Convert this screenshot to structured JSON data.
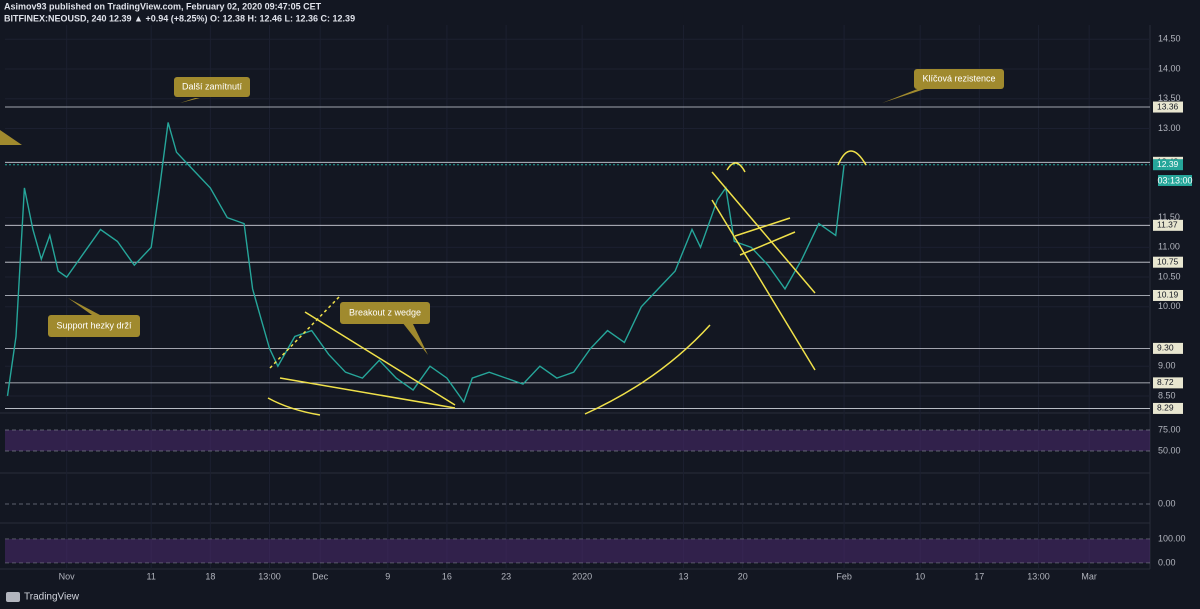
{
  "header": {
    "publisher": "Asimov93 published on TradingView.com, February 02, 2020 09:47:05 CET",
    "symbol": "BITFINEX:NEOUSD, 240  12.39  ▲ +0.94 (+8.25%) O: 12.38 H: 12.46 L: 12.36 C: 12.39"
  },
  "footer": {
    "brand": "TradingView"
  },
  "chart_data": {
    "type": "line",
    "color": "#26a69a",
    "grid": true,
    "x": [
      -7,
      -6,
      -5,
      -4,
      -3,
      -2,
      -1,
      0,
      2,
      4,
      6,
      8,
      10,
      11,
      12,
      13,
      15,
      17,
      19,
      21,
      22,
      23,
      24,
      25,
      27,
      29,
      31,
      33,
      35,
      37,
      39,
      41,
      43,
      45,
      47,
      48,
      50,
      52,
      54,
      56,
      58,
      60,
      62,
      64,
      66,
      68,
      70,
      72,
      74,
      75,
      77,
      78,
      79,
      81,
      83,
      85,
      87,
      89,
      91,
      92
    ],
    "values": [
      8.5,
      9.5,
      12.0,
      11.3,
      10.8,
      11.2,
      10.6,
      10.5,
      10.9,
      11.3,
      11.1,
      10.7,
      11.0,
      12.0,
      13.1,
      12.6,
      12.3,
      12.0,
      11.5,
      11.4,
      10.3,
      9.8,
      9.3,
      9.0,
      9.5,
      9.6,
      9.2,
      8.9,
      8.8,
      9.1,
      8.8,
      8.6,
      9.0,
      8.8,
      8.4,
      8.8,
      8.9,
      8.8,
      8.7,
      9.0,
      8.8,
      8.9,
      9.3,
      9.6,
      9.4,
      10.0,
      10.3,
      10.6,
      11.3,
      11.0,
      11.8,
      12.0,
      11.1,
      11.0,
      10.7,
      10.3,
      10.8,
      11.4,
      11.2,
      12.39
    ],
    "xlim": [
      -7.3,
      128.2
    ],
    "xticks": [
      {
        "value": 0,
        "label": "Nov"
      },
      {
        "value": 10,
        "label": "11"
      },
      {
        "value": 17,
        "label": "18"
      },
      {
        "value": 24,
        "label": "13:00"
      },
      {
        "value": 30,
        "label": "Dec"
      },
      {
        "value": 38,
        "label": "9"
      },
      {
        "value": 45,
        "label": "16"
      },
      {
        "value": 52,
        "label": "23"
      },
      {
        "value": 61,
        "label": "2020"
      },
      {
        "value": 73,
        "label": "13"
      },
      {
        "value": 80,
        "label": "20"
      },
      {
        "value": 92,
        "label": "Feb"
      },
      {
        "value": 101,
        "label": "10"
      },
      {
        "value": 108,
        "label": "17"
      },
      {
        "value": 115,
        "label": "13:00"
      },
      {
        "value": 121,
        "label": "Mar"
      }
    ],
    "ylim": [
      8.23,
      14.74
    ],
    "yticks": [
      {
        "value": 14.5,
        "label": "14.50"
      },
      {
        "value": 14,
        "label": "14.00"
      },
      {
        "value": 13.5,
        "label": "13.50"
      },
      {
        "value": 13,
        "label": "13.00"
      },
      {
        "value": 11.5,
        "label": "11.50"
      },
      {
        "value": 11,
        "label": "11.00"
      },
      {
        "value": 10.5,
        "label": "10.50"
      },
      {
        "value": 10,
        "label": "10.00"
      },
      {
        "value": 9,
        "label": "9.00"
      },
      {
        "value": 8.5,
        "label": "8.50"
      }
    ],
    "levels": [
      13.36,
      12.43,
      11.37,
      10.75,
      10.19,
      {
        "value": 9.3,
        "label": "9.30"
      },
      8.72,
      8.29
    ],
    "last_price": 12.39,
    "countdown": "03:13:00",
    "annotations": [
      "Další zamítnutí",
      "Klíčová rezistence",
      "Support hezky drží",
      "Breakout z wedge"
    ],
    "panes": [
      {
        "ylim": [
          25,
          92.9
        ],
        "yticks": [
          {
            "value": 75,
            "label": "75.00"
          },
          {
            "value": 50,
            "label": "50.00"
          }
        ]
      },
      {
        "ylim": [
          -0.23,
          0.37
        ],
        "yticks": [
          {
            "value": 0,
            "label": "0.00"
          }
        ]
      },
      {
        "ylim": [
          -21,
          158
        ],
        "yticks": [
          {
            "value": 100,
            "label": "100.00"
          },
          {
            "value": 0,
            "label": "0.00"
          }
        ]
      }
    ]
  }
}
